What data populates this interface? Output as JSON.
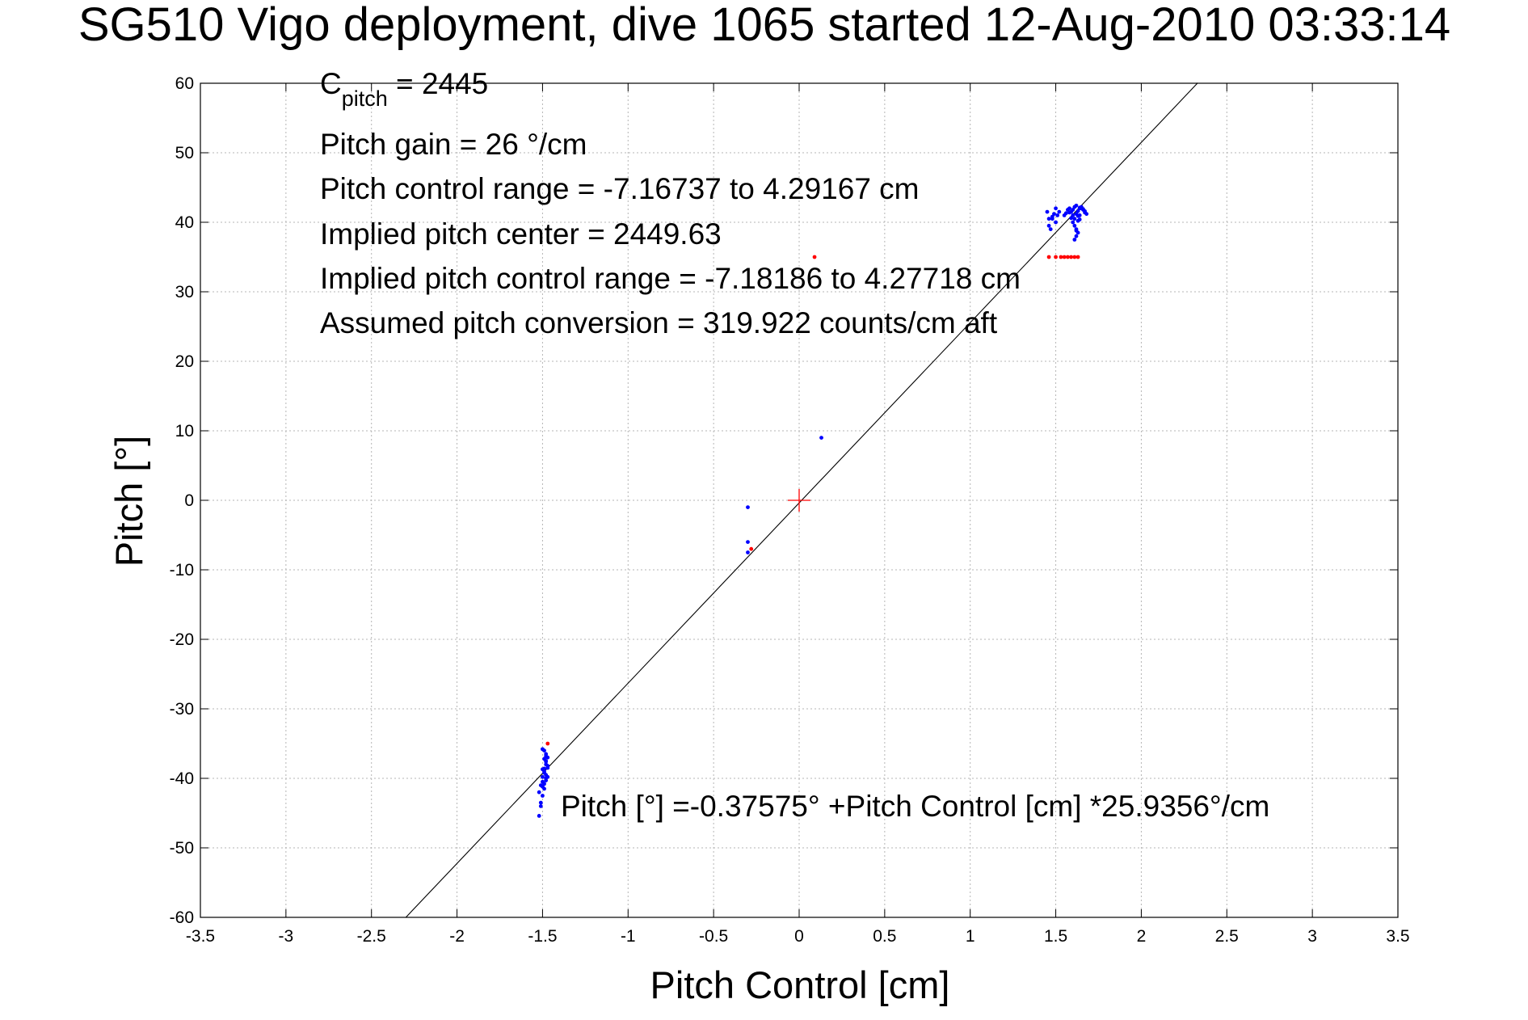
{
  "chart_data": {
    "type": "scatter",
    "title": "SG510 Vigo deployment, dive 1065 started 12-Aug-2010 03:33:14",
    "xlabel": "Pitch Control [cm]",
    "ylabel": "Pitch [°]",
    "xlim": [
      -3.5,
      3.5
    ],
    "ylim": [
      -60,
      60
    ],
    "grid": true,
    "x_ticks": [
      -3.5,
      -3,
      -2.5,
      -2,
      -1.5,
      -1,
      -0.5,
      0,
      0.5,
      1,
      1.5,
      2,
      2.5,
      3,
      3.5
    ],
    "x_tick_labels": [
      "-3.5",
      "-3",
      "-2.5",
      "-2",
      "-1.5",
      "-1",
      "-0.5",
      "0",
      "0.5",
      "1",
      "1.5",
      "2",
      "2.5",
      "3",
      "3.5"
    ],
    "y_ticks": [
      -60,
      -50,
      -40,
      -30,
      -20,
      -10,
      0,
      10,
      20,
      30,
      40,
      50,
      60
    ],
    "y_tick_labels": [
      "-60",
      "-50",
      "-40",
      "-30",
      "-20",
      "-10",
      "0",
      "10",
      "20",
      "30",
      "40",
      "50",
      "60"
    ],
    "annotations": {
      "c_pitch_main": "C",
      "c_pitch_sub": "pitch",
      "c_pitch_value": " = 2445",
      "pitch_gain": "Pitch gain = 26 °/cm",
      "pitch_control_range": "Pitch control range = -7.16737 to 4.29167 cm",
      "implied_pitch_center": "Implied pitch center = 2449.63",
      "implied_pitch_control_range": "Implied pitch control range = -7.18186 to 4.27718 cm",
      "assumed_pitch_conversion": "Assumed pitch conversion = 319.922 counts/cm aft",
      "fit_equation": "Pitch [°] =-0.37575° +Pitch Control [cm] *25.9356°/cm"
    },
    "fit_line": {
      "intercept": -0.37575,
      "slope": 25.9356,
      "x_range": [
        -2.3,
        2.33
      ],
      "color": "#000000"
    },
    "center_marker": {
      "x": 0,
      "y": 0,
      "color": "#ff0000"
    },
    "series": [
      {
        "color": "#0000ff",
        "marker": "point",
        "x": [
          -1.52,
          -1.51,
          -1.52,
          -1.51,
          -1.5,
          -1.5,
          -1.49,
          -1.49,
          -1.48,
          -1.48,
          -1.47,
          -1.48,
          -1.49,
          -1.5,
          -1.49,
          -1.48,
          -1.47,
          -1.48,
          -1.49,
          -1.5,
          -1.51,
          -1.48,
          -1.47,
          -1.49,
          -1.5,
          -1.48,
          -1.47,
          -1.48,
          -1.49,
          -1.5,
          -0.3,
          -0.3,
          -0.3,
          0.13,
          1.45,
          1.46,
          1.47,
          1.48,
          1.49,
          1.5,
          1.51,
          1.52,
          1.5,
          1.48,
          1.46,
          1.55,
          1.56,
          1.57,
          1.58,
          1.59,
          1.6,
          1.61,
          1.62,
          1.63,
          1.64,
          1.65,
          1.66,
          1.67,
          1.6,
          1.61,
          1.62,
          1.63,
          1.62,
          1.61,
          1.62,
          1.63,
          1.64,
          1.65,
          1.6,
          1.59,
          1.58,
          1.61,
          1.62,
          1.64,
          1.66,
          1.67,
          1.68,
          1.63,
          1.64
        ],
        "y": [
          -45.4,
          -43.5,
          -42.0,
          -41.0,
          -40.5,
          -39.8,
          -39.2,
          -38.6,
          -38.0,
          -37.5,
          -37.0,
          -36.5,
          -36.0,
          -35.8,
          -41.5,
          -40.0,
          -38.5,
          -39.5,
          -40.8,
          -42.5,
          -44.0,
          -36.8,
          -38.2,
          -39.0,
          -41.2,
          -37.6,
          -39.8,
          -40.3,
          -37.2,
          -38.7,
          -1.0,
          -6.0,
          -7.5,
          9.0,
          41.5,
          40.5,
          39.0,
          40.8,
          41.2,
          40.0,
          41.0,
          41.5,
          42.0,
          40.5,
          39.5,
          41.0,
          41.3,
          41.8,
          42.0,
          41.5,
          41.0,
          40.5,
          41.2,
          41.6,
          42.0,
          42.2,
          41.8,
          41.4,
          40.0,
          39.5,
          39.0,
          38.5,
          38.0,
          37.5,
          38.8,
          40.2,
          41.0,
          42.0,
          41.8,
          40.6,
          41.4,
          42.2,
          42.4,
          42.1,
          41.9,
          41.6,
          41.2,
          40.9,
          40.4
        ]
      },
      {
        "color": "#ff0000",
        "marker": "point",
        "x": [
          -1.47,
          -0.28,
          0.09,
          1.46,
          1.5,
          1.53,
          1.55,
          1.57,
          1.59,
          1.61,
          1.63
        ],
        "y": [
          -35.0,
          -7.0,
          35.0,
          35.0,
          35.0,
          35.0,
          35.0,
          35.0,
          35.0,
          35.0,
          35.0
        ]
      }
    ]
  }
}
